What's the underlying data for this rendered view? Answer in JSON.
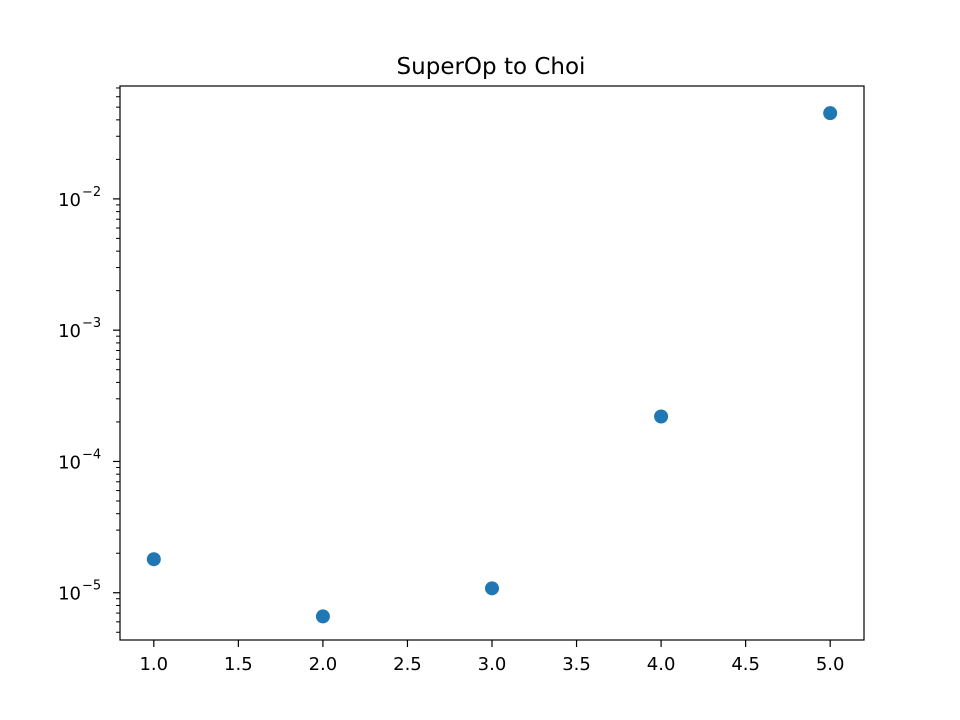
{
  "chart_data": {
    "type": "scatter",
    "title": "SuperOp to Choi",
    "xlabel": "",
    "ylabel": "",
    "x_scale": "linear",
    "y_scale": "log",
    "xlim": [
      0.8,
      5.2
    ],
    "ylim_log10": [
      -5.36,
      -1.14
    ],
    "grid": false,
    "x_ticks": [
      1.0,
      1.5,
      2.0,
      2.5,
      3.0,
      3.5,
      4.0,
      4.5,
      5.0
    ],
    "x_tick_labels": [
      "1.0",
      "1.5",
      "2.0",
      "2.5",
      "3.0",
      "3.5",
      "4.0",
      "4.5",
      "5.0"
    ],
    "y_major_exponents": [
      -5,
      -4,
      -3,
      -2
    ],
    "y_tick_labels": [
      {
        "base": "10",
        "exp": "−5"
      },
      {
        "base": "10",
        "exp": "−4"
      },
      {
        "base": "10",
        "exp": "−3"
      },
      {
        "base": "10",
        "exp": "−2"
      }
    ],
    "marker_color": "#1f77b4",
    "series": [
      {
        "x": [
          1.0,
          2.0,
          3.0,
          4.0,
          5.0
        ],
        "y": [
          1.8e-05,
          6.6e-06,
          1.08e-05,
          0.00022,
          0.045
        ]
      }
    ]
  }
}
